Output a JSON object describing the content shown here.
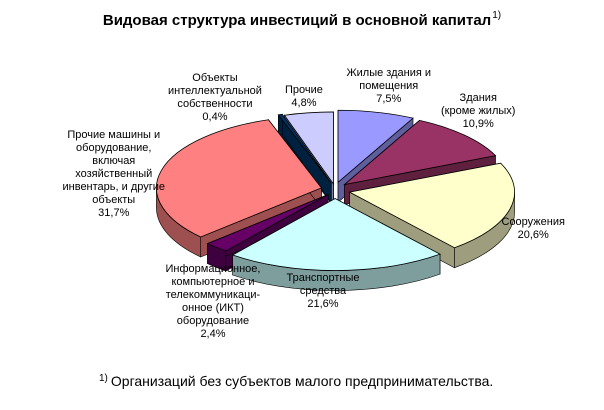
{
  "chart_data": {
    "type": "pie",
    "style": "3d-exploded",
    "title": "Видовая структура инвестиций в основной капитал",
    "title_superscript": "1)",
    "unit": "%",
    "slices": [
      {
        "name": "Жилые здания и помещения",
        "label_lines": [
          "Жилые здания и",
          "помещения"
        ],
        "value": 7.5,
        "value_text": "7,5%",
        "color": "#9999ff"
      },
      {
        "name": "Здания (кроме жилых)",
        "label_lines": [
          "Здания",
          "(кроме жилых)"
        ],
        "value": 10.9,
        "value_text": "10,9%",
        "color": "#993366"
      },
      {
        "name": "Сооружения",
        "label_lines": [
          "Сооружения"
        ],
        "value": 20.6,
        "value_text": "20,6%",
        "color": "#ffffcc"
      },
      {
        "name": "Транспортные средства",
        "label_lines": [
          "Транспортные",
          "средства"
        ],
        "value": 21.6,
        "value_text": "21,6%",
        "color": "#ccffff"
      },
      {
        "name": "Информационное, компьютерное и телекоммуникационное (ИКТ) оборудование",
        "label_lines": [
          "Информационное,",
          "компьютерное и",
          "телекоммуникаци-",
          "онное (ИКТ)",
          "оборудование"
        ],
        "value": 2.4,
        "value_text": "2,4%",
        "color": "#660066"
      },
      {
        "name": "Прочие машины и оборудование, включая хозяйственный инвентарь, и другие объекты",
        "label_lines": [
          "Прочие машины и",
          "оборудование,",
          "включая",
          "хозяйственный",
          "инвентарь, и другие",
          "объекты"
        ],
        "value": 31.7,
        "value_text": "31,7%",
        "color": "#ff8080"
      },
      {
        "name": "Объекты интеллектуальной собственности",
        "label_lines": [
          "Объекты",
          "интеллектуальной",
          "собственности"
        ],
        "value": 0.4,
        "value_text": "0,4%",
        "color": "#003366"
      },
      {
        "name": "Прочие",
        "label_lines": [
          "Прочие"
        ],
        "value": 4.8,
        "value_text": "4,8%",
        "color": "#ccccff"
      }
    ]
  },
  "footnote": {
    "marker": "1)",
    "text": "Организаций без субъектов малого предпринимательства."
  }
}
